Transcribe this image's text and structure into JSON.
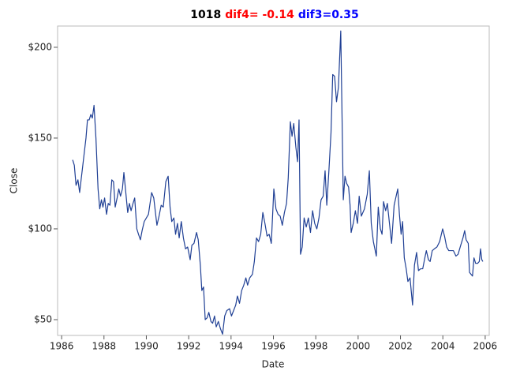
{
  "chart_data": {
    "type": "line",
    "title_parts": [
      {
        "text": "1018",
        "color": "#000000"
      },
      {
        "text": "dif4= -0.14",
        "color": "#ff0000"
      },
      {
        "text": "dif3=0.35",
        "color": "#0000ff"
      }
    ],
    "x_label": "Date",
    "y_label": "Close",
    "color": "#1f3f94",
    "xlim": [
      1985.81,
      2006.19
    ],
    "ylim": [
      41.3,
      211.7
    ],
    "xticks": [
      1986,
      1988,
      1990,
      1992,
      1994,
      1996,
      1998,
      2000,
      2002,
      2004,
      2006
    ],
    "yticks": [
      {
        "value": 50,
        "label": "$50"
      },
      {
        "value": 100,
        "label": "$100"
      },
      {
        "value": 150,
        "label": "$150"
      },
      {
        "value": 200,
        "label": "$200"
      }
    ],
    "x": [
      1986.52,
      1986.6,
      1986.68,
      1986.77,
      1986.85,
      1986.95,
      1987.05,
      1987.15,
      1987.22,
      1987.3,
      1987.38,
      1987.45,
      1987.53,
      1987.62,
      1987.72,
      1987.8,
      1987.88,
      1987.95,
      1988.03,
      1988.12,
      1988.2,
      1988.28,
      1988.37,
      1988.45,
      1988.53,
      1988.62,
      1988.7,
      1988.78,
      1988.87,
      1988.94,
      1989.03,
      1989.12,
      1989.2,
      1989.28,
      1989.37,
      1989.45,
      1989.55,
      1989.63,
      1989.72,
      1989.8,
      1989.9,
      1990.1,
      1990.25,
      1990.35,
      1990.5,
      1990.6,
      1990.7,
      1990.8,
      1990.92,
      1991.03,
      1991.12,
      1991.2,
      1991.3,
      1991.38,
      1991.47,
      1991.55,
      1991.65,
      1991.75,
      1991.85,
      1991.95,
      1992.07,
      1992.15,
      1992.25,
      1992.37,
      1992.45,
      1992.55,
      1992.62,
      1992.7,
      1992.78,
      1992.87,
      1992.95,
      1993.05,
      1993.13,
      1993.22,
      1993.3,
      1993.4,
      1993.5,
      1993.6,
      1993.7,
      1993.8,
      1993.93,
      1994.02,
      1994.12,
      1994.22,
      1994.3,
      1994.4,
      1994.5,
      1994.6,
      1994.7,
      1994.78,
      1994.88,
      1995.01,
      1995.1,
      1995.2,
      1995.3,
      1995.4,
      1995.5,
      1995.6,
      1995.7,
      1995.8,
      1995.9,
      1996.02,
      1996.12,
      1996.22,
      1996.32,
      1996.42,
      1996.52,
      1996.62,
      1996.7,
      1996.8,
      1996.88,
      1996.96,
      1997.06,
      1997.14,
      1997.21,
      1997.28,
      1997.36,
      1997.45,
      1997.55,
      1997.65,
      1997.75,
      1997.85,
      1997.95,
      1998.05,
      1998.15,
      1998.25,
      1998.35,
      1998.44,
      1998.52,
      1998.62,
      1998.72,
      1998.8,
      1998.89,
      1998.98,
      1999.07,
      1999.18,
      1999.3,
      1999.38,
      1999.46,
      1999.55,
      1999.62,
      1999.67,
      1999.77,
      1999.87,
      1999.97,
      2000.05,
      2000.15,
      2000.3,
      2000.43,
      2000.53,
      2000.62,
      2000.72,
      2000.86,
      2000.95,
      2001.05,
      2001.13,
      2001.2,
      2001.3,
      2001.38,
      2001.48,
      2001.58,
      2001.7,
      2001.87,
      2001.95,
      2002.03,
      2002.1,
      2002.18,
      2002.27,
      2002.35,
      2002.45,
      2002.57,
      2002.66,
      2002.76,
      2002.85,
      2002.95,
      2003.05,
      2003.15,
      2003.22,
      2003.32,
      2003.4,
      2003.5,
      2003.6,
      2003.72,
      2003.85,
      2003.99,
      2004.08,
      2004.18,
      2004.28,
      2004.4,
      2004.5,
      2004.62,
      2004.72,
      2004.82,
      2004.95,
      2005.03,
      2005.1,
      2005.2,
      2005.26,
      2005.33,
      2005.4,
      2005.47,
      2005.55,
      2005.64,
      2005.72,
      2005.78,
      2005.84,
      2005.89
    ],
    "values": [
      138,
      135,
      124,
      127,
      120,
      130,
      140,
      150,
      160,
      160,
      163,
      161,
      168,
      150,
      122,
      111,
      116,
      112,
      117,
      108,
      114,
      113,
      127,
      126,
      112,
      117,
      122,
      118,
      122,
      131,
      120,
      109,
      114,
      110,
      114,
      117,
      100,
      97,
      94,
      99,
      104,
      108,
      120,
      117,
      102,
      107,
      113,
      112,
      126,
      129,
      112,
      104,
      106,
      97,
      103,
      95,
      104,
      95,
      89,
      90,
      83,
      91,
      92,
      98,
      94,
      80,
      66,
      68,
      50,
      51,
      54,
      49,
      48,
      52,
      46,
      49,
      45,
      42,
      52,
      55,
      56,
      52,
      55,
      58,
      63,
      59,
      66,
      69,
      73,
      69,
      73,
      75,
      82,
      95,
      93,
      97,
      109,
      103,
      96,
      97,
      92,
      122,
      111,
      108,
      107,
      102,
      109,
      114,
      128,
      159,
      151,
      158,
      145,
      137,
      160,
      86,
      90,
      106,
      101,
      106,
      98,
      110,
      103,
      100,
      106,
      116,
      118,
      132,
      113,
      132,
      153,
      185,
      184,
      170,
      178,
      209,
      116,
      129,
      125,
      123,
      113,
      98,
      103,
      110,
      103,
      118,
      107,
      111,
      119,
      132,
      103,
      93,
      85,
      112,
      100,
      97,
      115,
      110,
      114,
      103,
      92,
      113,
      122,
      108,
      97,
      104,
      84,
      78,
      71,
      73,
      58,
      80,
      87,
      77,
      78,
      78,
      84,
      88,
      83,
      82,
      88,
      89,
      90,
      93,
      100,
      96,
      90,
      88,
      88,
      88,
      85,
      86,
      90,
      95,
      99,
      94,
      92,
      76,
      75,
      74,
      84,
      81,
      81,
      82,
      89,
      83,
      82
    ]
  }
}
